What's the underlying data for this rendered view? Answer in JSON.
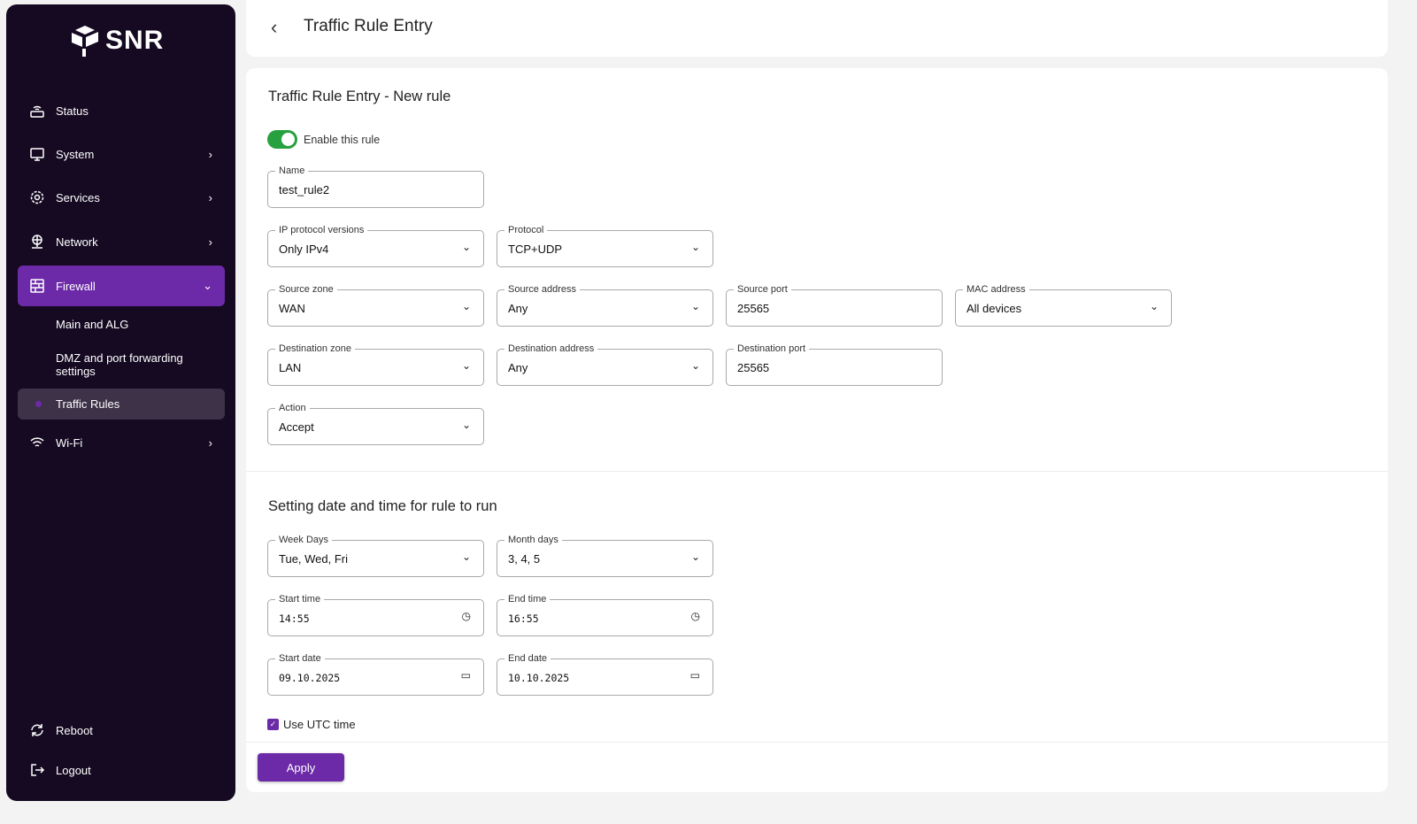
{
  "brand": {
    "name": "SNR"
  },
  "sidebar": {
    "items": [
      {
        "label": "Status",
        "icon": "router-icon"
      },
      {
        "label": "System",
        "icon": "monitor-icon"
      },
      {
        "label": "Services",
        "icon": "gear-icon"
      },
      {
        "label": "Network",
        "icon": "globe-network-icon"
      },
      {
        "label": "Firewall",
        "icon": "firewall-icon"
      },
      {
        "label": "Wi-Fi",
        "icon": "wifi-icon"
      }
    ],
    "firewall_sub": [
      "Main and ALG",
      "DMZ and port forwarding settings",
      "Traffic Rules"
    ],
    "bottom": [
      {
        "label": "Reboot",
        "icon": "reboot-icon"
      },
      {
        "label": "Logout",
        "icon": "logout-icon"
      }
    ]
  },
  "header": {
    "title": "Traffic Rule Entry"
  },
  "form": {
    "title": "Traffic Rule Entry - New rule",
    "enable_label": "Enable this rule",
    "enabled": true,
    "name": {
      "label": "Name",
      "value": "test_rule2"
    },
    "ip_versions": {
      "label": "IP protocol versions",
      "value": "Only IPv4"
    },
    "protocol": {
      "label": "Protocol",
      "value": "TCP+UDP"
    },
    "source_zone": {
      "label": "Source zone",
      "value": "WAN"
    },
    "source_address": {
      "label": "Source address",
      "value": "Any"
    },
    "source_port": {
      "label": "Source port",
      "value": "25565"
    },
    "mac": {
      "label": "MAC address",
      "value": "All devices"
    },
    "dest_zone": {
      "label": "Destination zone",
      "value": "LAN"
    },
    "dest_address": {
      "label": "Destination address",
      "value": "Any"
    },
    "dest_port": {
      "label": "Destination port",
      "value": "25565"
    },
    "action": {
      "label": "Action",
      "value": "Accept"
    }
  },
  "schedule": {
    "title": "Setting date and time for rule to run",
    "week_days": {
      "label": "Week Days",
      "value": "Tue, Wed, Fri"
    },
    "month_days": {
      "label": "Month days",
      "value": "3, 4, 5"
    },
    "start_time": {
      "label": "Start time",
      "value": "14:55"
    },
    "end_time": {
      "label": "End time",
      "value": "16:55"
    },
    "start_date": {
      "label": "Start date",
      "value": "09.10.2025"
    },
    "end_date": {
      "label": "End date",
      "value": "10.10.2025"
    },
    "utc_label": "Use UTC time",
    "utc": true
  },
  "apply_label": "Apply",
  "colors": {
    "sidebar": "#150a22",
    "accent": "#6c2aa8",
    "toggle": "#27a03f"
  }
}
